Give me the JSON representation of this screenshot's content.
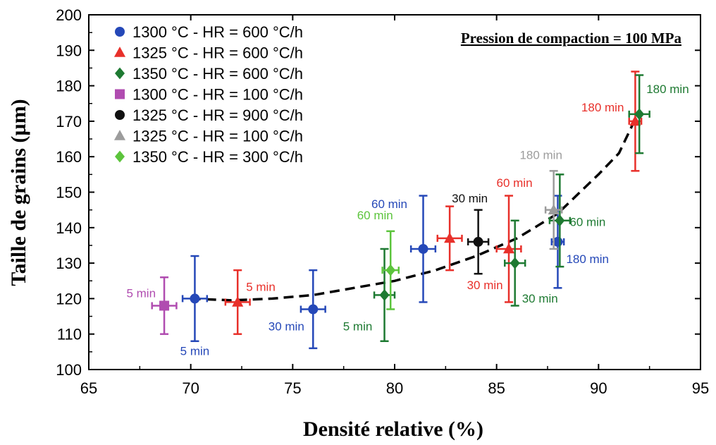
{
  "chart_data": {
    "type": "scatter",
    "xlabel": "Densité relative (%)",
    "ylabel": "Taille de grains (µm)",
    "xlim": [
      65,
      95
    ],
    "ylim": [
      100,
      200
    ],
    "xticks": [
      65,
      70,
      75,
      80,
      85,
      90,
      95
    ],
    "yticks": [
      100,
      110,
      120,
      130,
      140,
      150,
      160,
      170,
      180,
      190,
      200
    ],
    "grid": false,
    "legend_position": "top-left",
    "annotation": "Pression de compaction = 100 MPa",
    "trend_curve": {
      "style": "dashed",
      "x": [
        70,
        72,
        74,
        76,
        78,
        80,
        82,
        84,
        86,
        88,
        90,
        91,
        92
      ],
      "y": [
        120,
        119.5,
        120,
        121,
        123,
        125,
        128,
        132,
        137,
        144,
        155,
        161,
        173
      ]
    },
    "series": [
      {
        "name": "1300 °C - HR = 600 °C/h",
        "color": "#2548b8",
        "marker": "circle",
        "points": [
          {
            "x": 70.2,
            "y": 120,
            "xerr": 0.6,
            "yerr": 12,
            "label": "5 min"
          },
          {
            "x": 76.0,
            "y": 117,
            "xerr": 0.6,
            "yerr": 11,
            "label": "30 min"
          },
          {
            "x": 81.4,
            "y": 134,
            "xerr": 0.6,
            "yerr": 15,
            "label": "60 min"
          },
          {
            "x": 88.0,
            "y": 136,
            "xerr": 0.3,
            "yerr": 13,
            "label": "180 min"
          }
        ]
      },
      {
        "name": "1325 °C - HR = 600 °C/h",
        "color": "#e8302a",
        "marker": "triangle",
        "points": [
          {
            "x": 72.3,
            "y": 119,
            "xerr": 0.6,
            "yerr": 9,
            "label": "5 min"
          },
          {
            "x": 82.7,
            "y": 137,
            "xerr": 0.6,
            "yerr": 9,
            "label": "30 min"
          },
          {
            "x": 85.6,
            "y": 134,
            "xerr": 0.6,
            "yerr": 15,
            "label": "60 min"
          },
          {
            "x": 91.8,
            "y": 170,
            "xerr": 0.3,
            "yerr": 14,
            "label": "180 min"
          }
        ]
      },
      {
        "name": "1350 °C - HR = 600 °C/h",
        "color": "#1e7a32",
        "marker": "diamond",
        "points": [
          {
            "x": 79.5,
            "y": 121,
            "xerr": 0.5,
            "yerr": 13,
            "label": "5 min"
          },
          {
            "x": 85.9,
            "y": 130,
            "xerr": 0.5,
            "yerr": 12,
            "label": "30 min"
          },
          {
            "x": 88.1,
            "y": 142,
            "xerr": 0.5,
            "yerr": 13,
            "label": "60 min"
          },
          {
            "x": 92.0,
            "y": 172,
            "xerr": 0.5,
            "yerr": 11,
            "label": "180 min"
          }
        ]
      },
      {
        "name": "1300 °C - HR = 100 °C/h",
        "color": "#b04cb0",
        "marker": "square",
        "points": [
          {
            "x": 68.7,
            "y": 118,
            "xerr": 0.6,
            "yerr": 8,
            "label": "5 min"
          }
        ]
      },
      {
        "name": "1325 °C - HR = 900 °C/h",
        "color": "#111111",
        "marker": "circle",
        "points": [
          {
            "x": 84.1,
            "y": 136,
            "xerr": 0.5,
            "yerr": 9,
            "label": "30 min"
          }
        ]
      },
      {
        "name": "1325 °C - HR = 100 °C/h",
        "color": "#9c9c9c",
        "marker": "triangle",
        "points": [
          {
            "x": 87.8,
            "y": 145,
            "xerr": 0.4,
            "yerr": 11,
            "label": "180 min"
          }
        ]
      },
      {
        "name": "1350 °C - HR = 300 °C/h",
        "color": "#5cc43c",
        "marker": "diamond",
        "points": [
          {
            "x": 79.8,
            "y": 128,
            "xerr": 0.4,
            "yerr": 11,
            "label": "60 min"
          }
        ]
      }
    ]
  }
}
